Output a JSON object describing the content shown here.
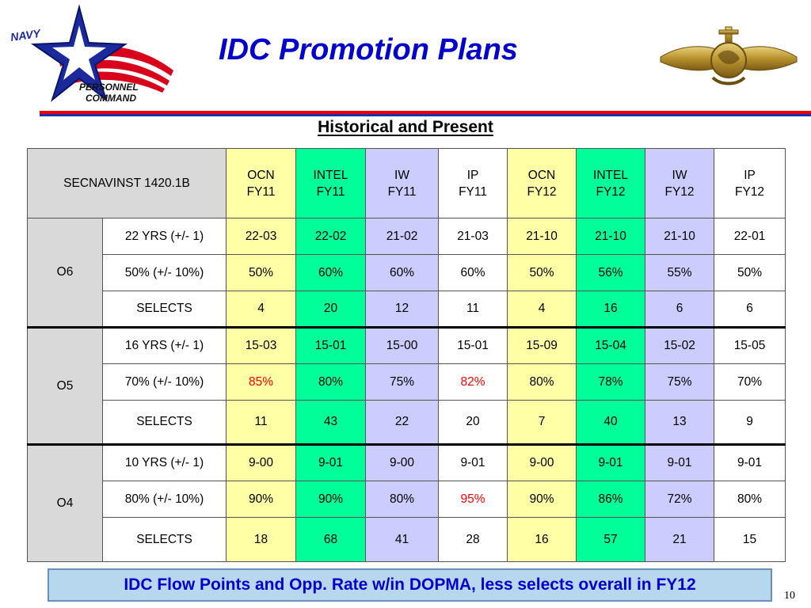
{
  "logo": {
    "line1": "NAVY",
    "line2": "PERSONNEL",
    "line3": "COMMAND"
  },
  "title": "IDC Promotion Plans",
  "subtitle": "Historical and Present",
  "table": {
    "corner": "SECNAVINST 1420.1B",
    "columns": [
      {
        "l1": "OCN",
        "l2": "FY11"
      },
      {
        "l1": "INTEL",
        "l2": "FY11"
      },
      {
        "l1": "IW",
        "l2": "FY11"
      },
      {
        "l1": "IP",
        "l2": "FY11"
      },
      {
        "l1": "OCN",
        "l2": "FY12"
      },
      {
        "l1": "INTEL",
        "l2": "FY12"
      },
      {
        "l1": "IW",
        "l2": "FY12"
      },
      {
        "l1": "IP",
        "l2": "FY12"
      }
    ],
    "groups": [
      {
        "grade": "O6",
        "rows": [
          {
            "label": "22 YRS (+/- 1)",
            "values": [
              "22-03",
              "22-02",
              "21-02",
              "21-03",
              "21-10",
              "21-10",
              "21-10",
              "22-01"
            ]
          },
          {
            "label": "50% (+/- 10%)",
            "values": [
              "50%",
              "60%",
              "60%",
              "60%",
              "50%",
              "56%",
              "55%",
              "50%"
            ]
          },
          {
            "label": "SELECTS",
            "values": [
              "4",
              "20",
              "12",
              "11",
              "4",
              "16",
              "6",
              "6"
            ]
          }
        ]
      },
      {
        "grade": "O5",
        "rows": [
          {
            "label": "16 YRS (+/- 1)",
            "values": [
              "15-03",
              "15-01",
              "15-00",
              "15-01",
              "15-09",
              "15-04",
              "15-02",
              "15-05"
            ]
          },
          {
            "label": "70% (+/- 10%)",
            "values": [
              "85%",
              "80%",
              "75%",
              "82%",
              "80%",
              "78%",
              "75%",
              "70%"
            ]
          },
          {
            "label": "SELECTS",
            "values": [
              "11",
              "43",
              "22",
              "20",
              "7",
              "40",
              "13",
              "9"
            ]
          }
        ]
      },
      {
        "grade": "O4",
        "rows": [
          {
            "label": "10 YRS (+/- 1)",
            "values": [
              "9-00",
              "9-01",
              "9-00",
              "9-01",
              "9-00",
              "9-01",
              "9-01",
              "9-01"
            ]
          },
          {
            "label": "80% (+/- 10%)",
            "values": [
              "90%",
              "90%",
              "80%",
              "95%",
              "90%",
              "86%",
              "72%",
              "80%"
            ]
          },
          {
            "label": "SELECTS",
            "values": [
              "18",
              "68",
              "41",
              "28",
              "16",
              "57",
              "21",
              "15"
            ]
          }
        ]
      }
    ],
    "highlight_color": "#ff0000",
    "column_colors": [
      "#ffffa6",
      "#00ff99",
      "#ccccff",
      "#ffffff"
    ]
  },
  "summary": "IDC Flow Points and Opp. Rate w/in DOPMA, less selects overall in FY12",
  "page_number": "10"
}
